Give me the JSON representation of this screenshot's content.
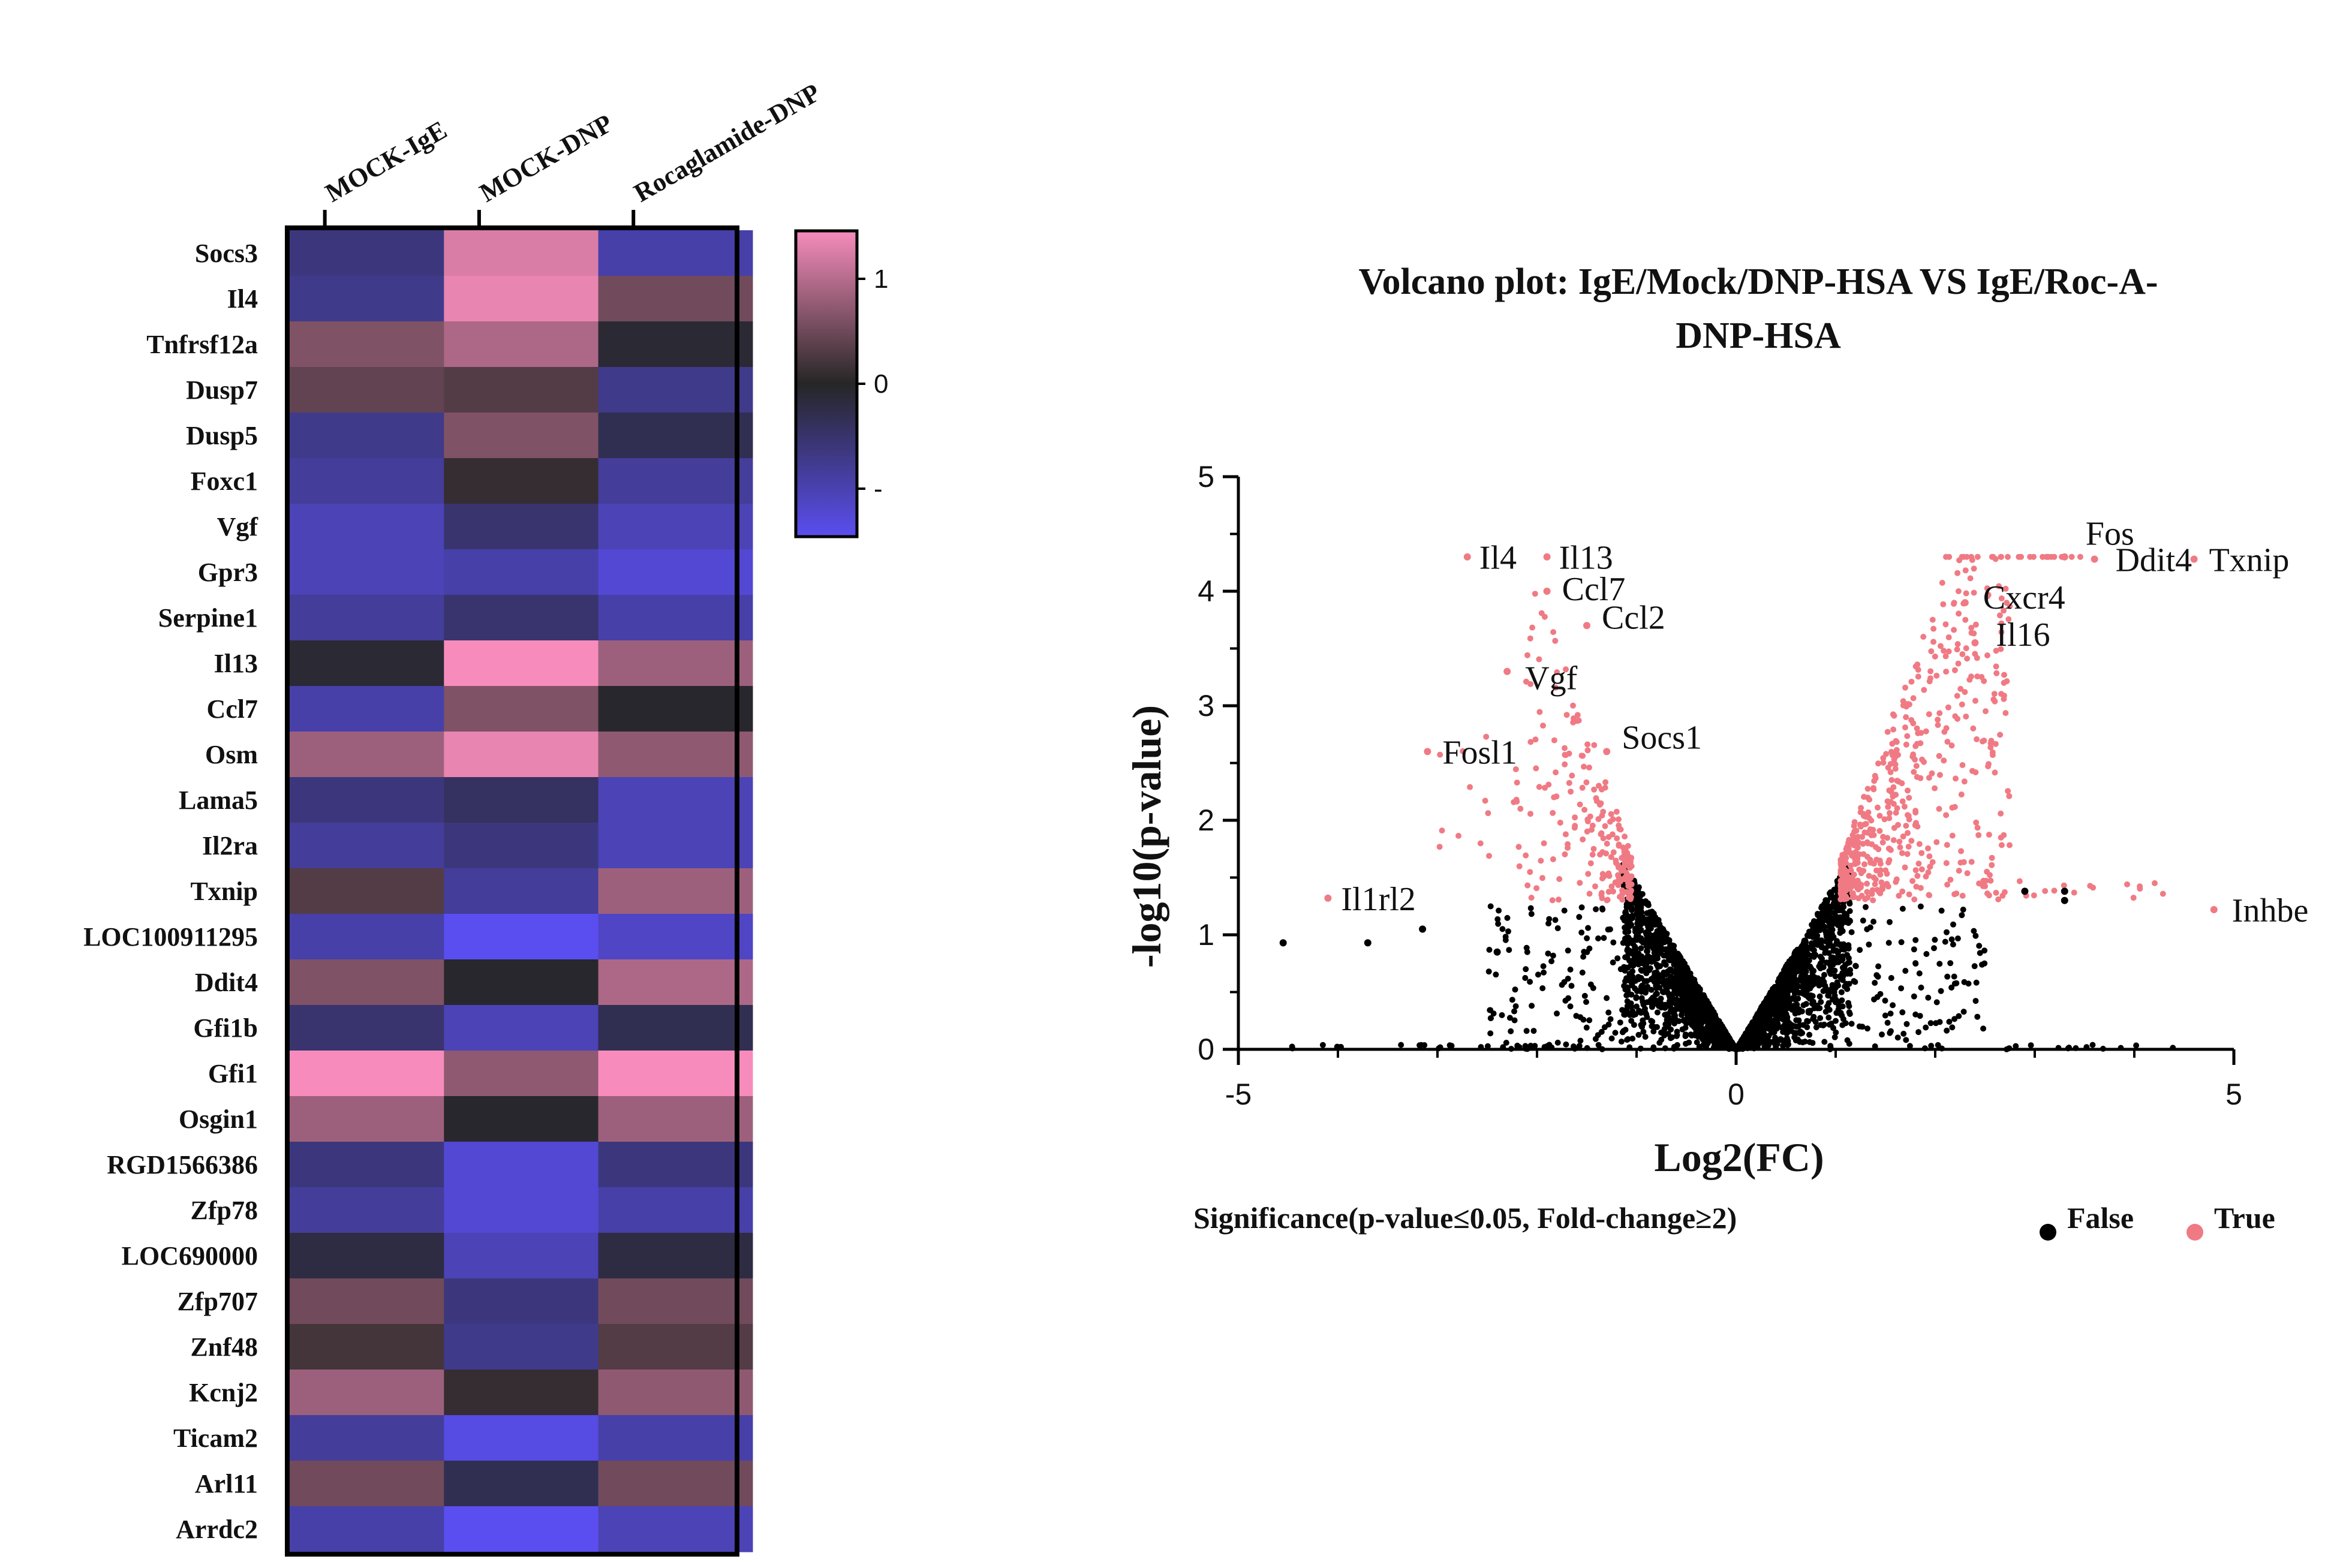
{
  "chart_data": [
    {
      "type": "heatmap",
      "columns": [
        "MOCK-IgE",
        "MOCK-DNP",
        "Rocaglamide-DNP"
      ],
      "rows": [
        "Socs3",
        "Il4",
        "Tnfrsf12a",
        "Dusp7",
        "Dusp5",
        "Foxc1",
        "Vgf",
        "Gpr3",
        "Serpine1",
        "Il13",
        "Ccl7",
        "Osm",
        "Lama5",
        "Il2ra",
        "Txnip",
        "LOC100911295",
        "Ddit4",
        "Gfi1b",
        "Gfi1",
        "Osgin1",
        "RGD1566386",
        "Zfp78",
        "LOC690000",
        "Zfp707",
        "Znf48",
        "Kcnj2",
        "Ticam2",
        "Arl11",
        "Arrdc2"
      ],
      "values": [
        [
          -0.6,
          1.2,
          -0.9
        ],
        [
          -0.7,
          1.3,
          0.5
        ],
        [
          0.6,
          0.9,
          -0.1
        ],
        [
          0.4,
          0.3,
          -0.7
        ],
        [
          -0.7,
          0.6,
          -0.3
        ],
        [
          -0.8,
          0.1,
          -0.8
        ],
        [
          -1.0,
          -0.5,
          -1.0
        ],
        [
          -1.0,
          -0.9,
          -1.2
        ],
        [
          -0.8,
          -0.5,
          -0.9
        ],
        [
          -0.1,
          1.4,
          0.8
        ],
        [
          -0.9,
          0.6,
          -0.05
        ],
        [
          0.8,
          1.3,
          0.7
        ],
        [
          -0.6,
          -0.4,
          -1.0
        ],
        [
          -0.8,
          -0.6,
          -1.0
        ],
        [
          0.3,
          -0.8,
          0.8
        ],
        [
          -0.9,
          -1.4,
          -1.1
        ],
        [
          0.6,
          -0.05,
          0.9
        ],
        [
          -0.5,
          -1.0,
          -0.3
        ],
        [
          1.4,
          0.7,
          1.4
        ],
        [
          0.8,
          -0.05,
          0.8
        ],
        [
          -0.6,
          -1.2,
          -0.6
        ],
        [
          -0.8,
          -1.2,
          -0.9
        ],
        [
          -0.2,
          -1.0,
          -0.2
        ],
        [
          0.5,
          -0.6,
          0.5
        ],
        [
          0.2,
          -0.7,
          0.3
        ],
        [
          0.8,
          0.1,
          0.7
        ],
        [
          -0.8,
          -1.3,
          -0.9
        ],
        [
          0.5,
          -0.3,
          0.5
        ],
        [
          -0.9,
          -1.4,
          -1.0
        ]
      ],
      "colorbar": {
        "ticks": [
          "1",
          "0",
          "- 1"
        ],
        "low_color": "#5a4ef0",
        "mid_color": "#262626",
        "high_color": "#f78cbc"
      }
    },
    {
      "type": "scatter",
      "title": "Volcano plot: IgE/Mock/DNP-HSA VS IgE/Roc-A-DNP-HSA",
      "title_lines": [
        "Volcano plot: IgE/Mock/DNP-HSA VS IgE/Roc-A-",
        "DNP-HSA"
      ],
      "xlabel": "Log2(FC)",
      "ylabel": "-log10(p-value)",
      "xlim": [
        -5,
        5
      ],
      "ylim": [
        0,
        5
      ],
      "xticks": [
        "-5",
        "0",
        "5"
      ],
      "yticks": [
        "0",
        "1",
        "2",
        "3",
        "4",
        "5"
      ],
      "legend": {
        "title": "Significance(p-value≤0.05, Fold-change≥2)",
        "entries": [
          {
            "label": "False",
            "color": "#000000"
          },
          {
            "label": "True",
            "color": "#f07a84"
          }
        ]
      },
      "labeled_genes": [
        {
          "name": "Il4",
          "x": -2.7,
          "y": 4.3
        },
        {
          "name": "Il13",
          "x": -1.9,
          "y": 4.3
        },
        {
          "name": "Ccl7",
          "x": -1.9,
          "y": 4.0
        },
        {
          "name": "Ccl2",
          "x": -1.5,
          "y": 3.7
        },
        {
          "name": "Vgf",
          "x": -2.3,
          "y": 3.3
        },
        {
          "name": "Fosl1",
          "x": -3.1,
          "y": 2.6
        },
        {
          "name": "Socs1",
          "x": -1.3,
          "y": 2.6
        },
        {
          "name": "Il1rl2",
          "x": -4.1,
          "y": 1.32
        },
        {
          "name": "Fos",
          "x": 3.3,
          "y": 4.3
        },
        {
          "name": "Ddit4",
          "x": 3.6,
          "y": 4.28
        },
        {
          "name": "Txnip",
          "x": 4.6,
          "y": 4.28
        },
        {
          "name": "Cxcr4",
          "x": 2.3,
          "y": 3.9
        },
        {
          "name": "Il16",
          "x": 2.4,
          "y": 3.55
        },
        {
          "name": "Inhbe",
          "x": 4.8,
          "y": 1.22
        }
      ]
    }
  ]
}
